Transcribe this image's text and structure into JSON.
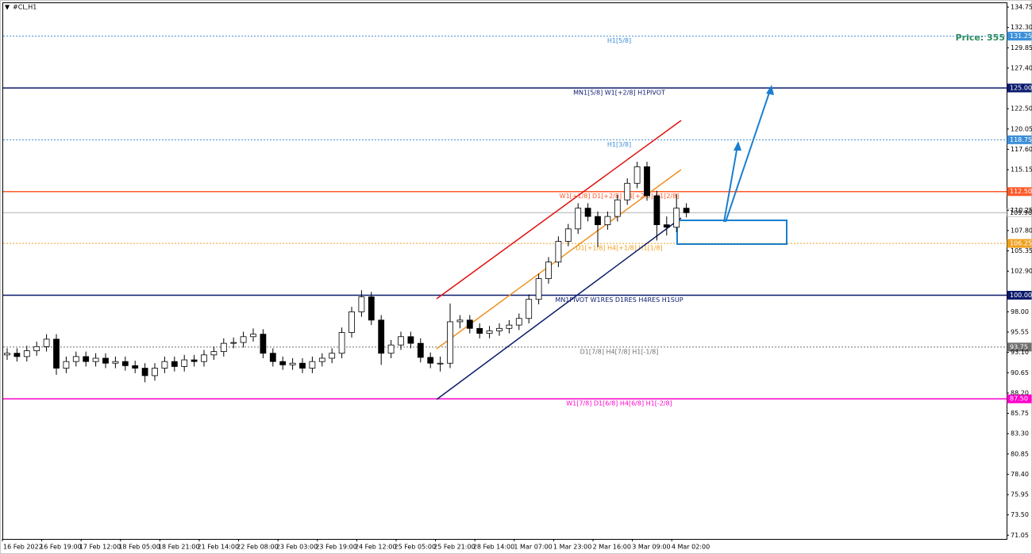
{
  "chart_data": {
    "type": "candlestick",
    "symbol": "#CL,H1",
    "annotation": "Price: 355",
    "open": [
      92.8,
      93.0,
      92.6,
      93.3,
      93.8,
      94.7,
      91.2,
      92.0,
      92.6,
      92.0,
      92.4,
      91.8,
      92.0,
      91.5,
      91.2,
      90.3,
      91.2,
      92.0,
      91.4,
      92.2,
      92.0,
      92.8,
      93.2,
      94.2,
      94.3,
      95.0,
      95.3,
      93.0,
      92.0,
      91.6,
      91.8,
      91.2,
      92.0,
      92.4,
      93.0,
      95.5,
      98.0,
      99.8,
      97.0,
      93.0,
      94.0,
      95.0,
      94.2,
      92.5,
      91.8,
      91.8,
      96.8,
      97.0,
      96.0,
      95.4,
      95.7,
      96.0,
      96.4,
      97.2,
      99.5,
      102.0,
      104.0,
      106.5,
      108.0,
      110.5,
      109.5,
      108.5,
      109.5,
      111.5,
      113.5,
      115.5,
      112.0,
      108.5,
      108.2,
      110.5
    ],
    "high": [
      93.6,
      93.6,
      93.9,
      94.4,
      95.3,
      95.3,
      92.6,
      93.2,
      93.2,
      93.0,
      93.0,
      92.6,
      92.6,
      92.1,
      91.8,
      91.8,
      92.6,
      92.6,
      92.8,
      92.8,
      93.4,
      93.8,
      94.8,
      94.9,
      95.6,
      96.0,
      95.9,
      93.6,
      92.6,
      92.4,
      92.4,
      92.6,
      93.0,
      93.6,
      96.1,
      98.6,
      100.6,
      100.4,
      97.6,
      94.6,
      95.6,
      95.6,
      94.8,
      93.1,
      92.6,
      99.0,
      97.6,
      97.6,
      96.6,
      96.3,
      96.6,
      97.0,
      97.8,
      100.1,
      102.6,
      104.6,
      107.1,
      108.6,
      111.1,
      111.1,
      110.1,
      110.1,
      112.1,
      114.1,
      116.1,
      116.1,
      112.6,
      109.5,
      112.2,
      111.1
    ],
    "low": [
      92.2,
      92.0,
      92.0,
      92.7,
      93.2,
      90.4,
      90.6,
      91.4,
      91.4,
      91.4,
      91.2,
      91.2,
      90.9,
      90.6,
      89.5,
      89.7,
      90.6,
      90.8,
      90.8,
      91.4,
      91.4,
      92.2,
      92.6,
      93.6,
      93.7,
      94.4,
      92.4,
      91.4,
      91.0,
      91.0,
      90.6,
      90.6,
      91.4,
      91.8,
      92.4,
      94.9,
      97.4,
      96.4,
      91.6,
      92.4,
      93.4,
      93.6,
      91.9,
      91.2,
      90.8,
      91.2,
      96.0,
      95.4,
      94.8,
      94.8,
      95.1,
      95.4,
      95.8,
      96.6,
      98.9,
      101.4,
      103.4,
      105.9,
      107.4,
      108.9,
      105.8,
      107.9,
      108.9,
      110.9,
      112.9,
      111.4,
      106.6,
      107.2,
      107.6,
      109.4
    ],
    "close": [
      93.0,
      92.6,
      93.3,
      93.8,
      94.7,
      91.2,
      92.0,
      92.6,
      92.0,
      92.4,
      91.8,
      92.0,
      91.5,
      91.2,
      90.3,
      91.2,
      92.0,
      91.4,
      92.2,
      92.0,
      92.8,
      93.2,
      94.2,
      94.3,
      95.0,
      95.3,
      93.0,
      92.0,
      91.6,
      91.8,
      91.2,
      92.0,
      92.4,
      93.0,
      95.5,
      98.0,
      99.8,
      97.0,
      93.0,
      94.0,
      95.0,
      94.2,
      92.5,
      91.8,
      91.8,
      96.8,
      97.0,
      96.0,
      95.4,
      95.7,
      96.0,
      96.4,
      97.2,
      99.5,
      102.0,
      104.0,
      106.5,
      108.0,
      110.5,
      109.5,
      108.5,
      109.5,
      111.5,
      113.5,
      115.5,
      112.0,
      108.5,
      108.2,
      110.5,
      109.96
    ],
    "up_color": "#ffffff",
    "down_color": "#000000",
    "ylim": [
      70.6,
      135.23
    ],
    "yticks": [
      134.75,
      {
        "value": 132.3,
        "label": "132.30"
      },
      129.85,
      {
        "value": 127.4,
        "label": "127.40"
      },
      {
        "value": 122.5,
        "label": "122.50"
      },
      120.05,
      {
        "value": 117.6,
        "label": "117.60"
      },
      115.15,
      110.25,
      {
        "value": 107.8,
        "label": "107.80"
      },
      105.35,
      {
        "value": 102.9,
        "label": "102.90"
      },
      {
        "value": 98,
        "label": "98.00"
      },
      95.55,
      {
        "value": 93.1,
        "label": "93.10"
      },
      90.65,
      {
        "value": 88.2,
        "label": "88.20"
      },
      85.75,
      {
        "value": 83.3,
        "label": "83.30"
      },
      80.85,
      {
        "value": 78.4,
        "label": "78.40"
      },
      75.95,
      {
        "value": 73.5,
        "label": "73.50"
      },
      71.05
    ],
    "x_labels": [
      "16 Feb 2022",
      "16 Feb 19:00",
      "17 Feb 12:00",
      "18 Feb 05:00",
      "18 Feb 21:00",
      "21 Feb 14:00",
      "22 Feb 08:00",
      "23 Feb 03:00",
      "23 Feb 19:00",
      "24 Feb 12:00",
      "25 Feb 05:00",
      "25 Feb 21:00",
      "28 Feb 14:00",
      "1 Mar 07:00",
      "1 Mar 23:00",
      "2 Mar 16:00",
      "3 Mar 09:00",
      "4 Mar 02:00"
    ],
    "levels": [
      {
        "value": 131.25,
        "text": "H1[5/8]",
        "color": "#3c8fd8",
        "style": "dotted"
      },
      {
        "value": 125,
        "label": "125.00",
        "text": "MN1[5/8] W1[+2/8] H1PIVOT",
        "color": "#0b1a6b",
        "style": "solid"
      },
      {
        "value": 118.75,
        "text": "H1[3/8]",
        "color": "#3c8fd8",
        "style": "dotted"
      },
      {
        "value": 112.5,
        "label": "112.50",
        "text": "W1[+1/8] D1[+2/8] H4[+2/8] H1[2/8]",
        "color": "#ff5a2a",
        "style": "solid"
      },
      {
        "value": 109.96,
        "color": "#c8c8c8",
        "style": "solid"
      },
      {
        "value": 106.25,
        "text": "D1[+1/8] H4[+1/8] H1[1/8]",
        "color": "#f0a020",
        "style": "dotted"
      },
      {
        "value": 100,
        "label": "100.00",
        "text": "MN1PIVOT W1RES D1RES H4RES H1SUP",
        "color": "#0b1a6b",
        "style": "solid"
      },
      {
        "value": 93.75,
        "text": "D1[7/8] H4[7/8] H1[-1/8]",
        "color": "#707070",
        "style": "dotted"
      },
      {
        "value": 87.5,
        "label": "87.50",
        "text": "W1[7/8] D1[6/8] H4[6/8] H1[-2/8]",
        "color": "#ff00cc",
        "style": "solid"
      }
    ]
  }
}
